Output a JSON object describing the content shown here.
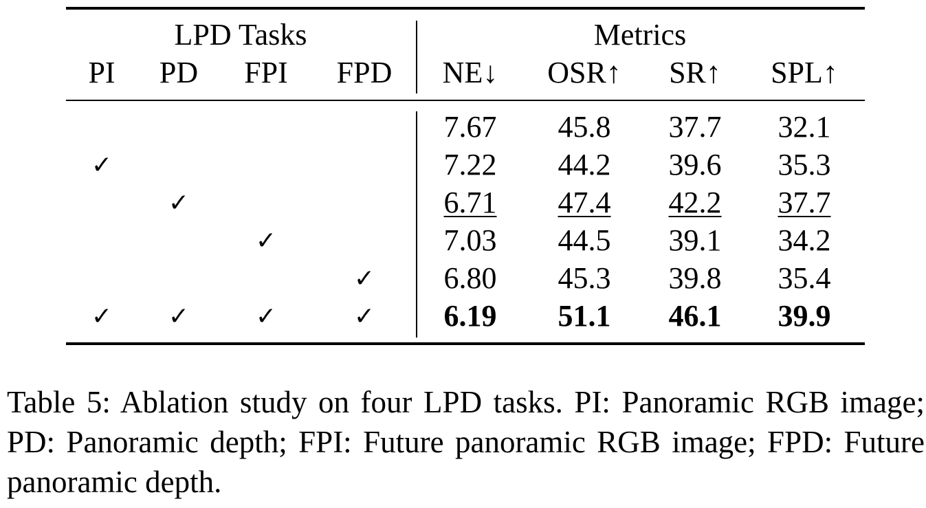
{
  "table": {
    "group_headers": {
      "lpd_tasks": "LPD Tasks",
      "metrics": "Metrics"
    },
    "task_columns": [
      "PI",
      "PD",
      "FPI",
      "FPD"
    ],
    "metric_columns": [
      "NE↓",
      "OSR↑",
      "SR↑",
      "SPL↑"
    ],
    "check_symbol": "✓",
    "rows": [
      {
        "tasks": [
          false,
          false,
          false,
          false
        ],
        "values": [
          "7.67",
          "45.8",
          "37.7",
          "32.1"
        ],
        "style": "normal"
      },
      {
        "tasks": [
          true,
          false,
          false,
          false
        ],
        "values": [
          "7.22",
          "44.2",
          "39.6",
          "35.3"
        ],
        "style": "normal"
      },
      {
        "tasks": [
          false,
          true,
          false,
          false
        ],
        "values": [
          "6.71",
          "47.4",
          "42.2",
          "37.7"
        ],
        "style": "underline"
      },
      {
        "tasks": [
          false,
          false,
          true,
          false
        ],
        "values": [
          "7.03",
          "44.5",
          "39.1",
          "34.2"
        ],
        "style": "normal"
      },
      {
        "tasks": [
          false,
          false,
          false,
          true
        ],
        "values": [
          "6.80",
          "45.3",
          "39.8",
          "35.4"
        ],
        "style": "normal"
      },
      {
        "tasks": [
          true,
          true,
          true,
          true
        ],
        "values": [
          "6.19",
          "51.1",
          "46.1",
          "39.9"
        ],
        "style": "bold"
      }
    ]
  },
  "caption": "Table 5: Ablation study on four LPD tasks. PI: Panoramic RGB image; PD: Panoramic depth; FPI: Future panoramic RGB image; FPD: Future panoramic depth."
}
